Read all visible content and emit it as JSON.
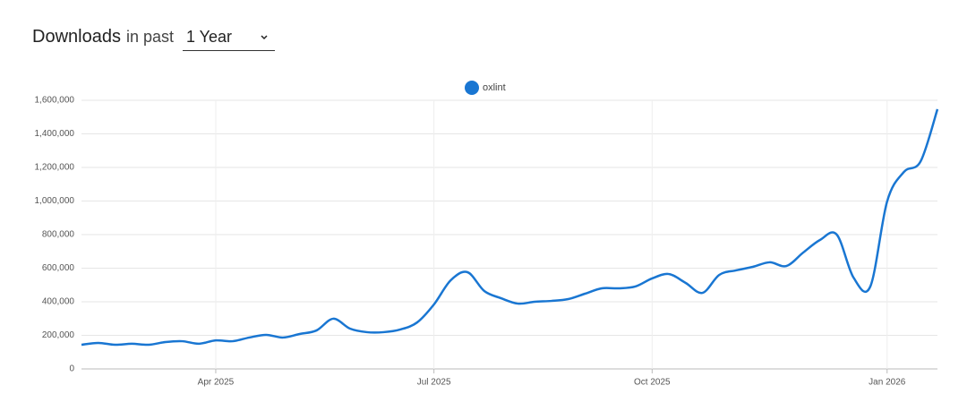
{
  "header": {
    "title": "Downloads",
    "subtitle": "in past",
    "select": "1 Year"
  },
  "chart_data": {
    "type": "line",
    "categories": [
      null,
      null,
      null,
      null,
      null,
      null,
      null,
      null,
      "Apr 2025",
      null,
      null,
      null,
      null,
      null,
      null,
      null,
      null,
      null,
      null,
      null,
      null,
      "Jul 2025",
      null,
      null,
      null,
      null,
      null,
      null,
      null,
      null,
      null,
      null,
      null,
      null,
      "Oct 2025",
      null,
      null,
      null,
      null,
      null,
      null,
      null,
      null,
      null,
      null,
      null,
      null,
      null,
      "Jan 2026",
      null,
      null,
      null
    ],
    "series": [
      {
        "name": "oxlint",
        "color": "#1976d2",
        "values": [
          144000,
          155000,
          144000,
          150000,
          144000,
          160000,
          165000,
          150000,
          170000,
          165000,
          187000,
          203000,
          187000,
          208000,
          229000,
          299000,
          240000,
          219000,
          219000,
          235000,
          277000,
          384000,
          528000,
          576000,
          464000,
          421000,
          389000,
          400000,
          405000,
          416000,
          448000,
          480000,
          480000,
          491000,
          539000,
          565000,
          512000,
          453000,
          560000,
          587000,
          608000,
          635000,
          613000,
          693000,
          768000,
          800000,
          544000,
          491000,
          997000,
          1173000,
          1237000,
          1547000
        ]
      }
    ],
    "ylim": [
      0,
      1600000
    ],
    "yticks": [
      0,
      {
        "value": 200000,
        "label": "200,000"
      },
      {
        "value": 400000,
        "label": "400,000"
      },
      {
        "value": 600000,
        "label": "600,000"
      },
      {
        "value": 800000,
        "label": "800,000"
      },
      {
        "value": 1000000,
        "label": "1,000,000"
      },
      {
        "value": 1200000,
        "label": "1,200,000"
      },
      {
        "value": 1400000,
        "label": "1,400,000"
      },
      {
        "value": 1600000,
        "label": "1,600,000"
      }
    ],
    "grid": true,
    "legend": "top"
  }
}
